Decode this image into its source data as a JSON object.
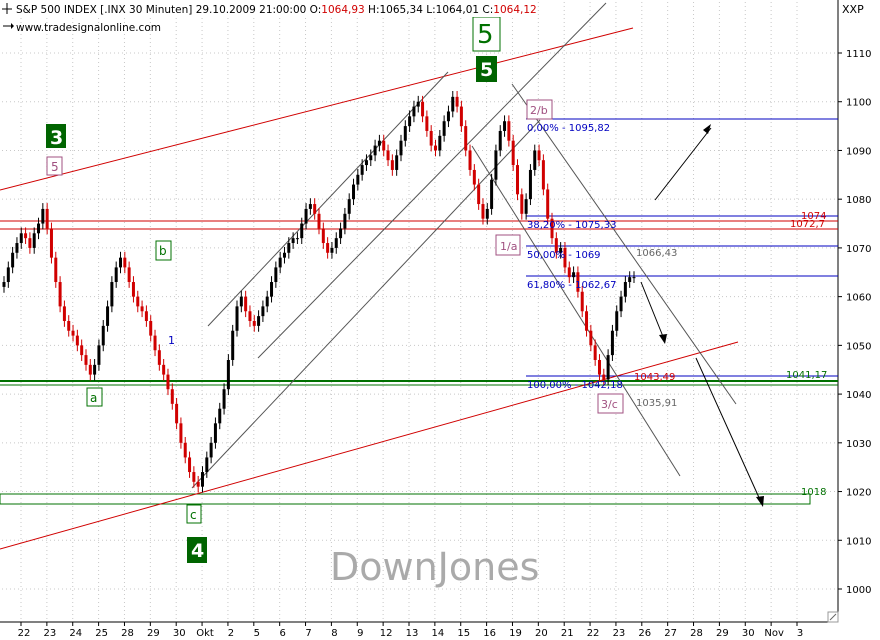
{
  "header": {
    "symbol": "S&P 500 INDEX [.INX  30 Minuten]",
    "timestamp": "29.10.2009 21:00:00",
    "o_label": "O:",
    "o_value": "1064,93",
    "h_text": "H:1065,34",
    "l_text": "L:1064,01",
    "c_label": "C:",
    "c_value": "1064,12",
    "website": "www.tradesignalonline.com",
    "exchange": "XXP"
  },
  "watermark": "DownJones",
  "colors": {
    "up": "#000000",
    "down": "#d00000",
    "green_line": "#007000",
    "red_line": "#d00000",
    "fib_blue": "#0000c0",
    "grid": "#c8c8c8"
  },
  "wave_labels": {
    "w3": "3",
    "w4": "4",
    "w5_outline": "5",
    "w5_solid": "5",
    "w5_small": "5",
    "a": "a",
    "b": "b",
    "c": "c",
    "one_a": "1/a",
    "two_b": "2/b",
    "three_c": "3/c",
    "one_small": "1"
  },
  "fib": {
    "f0": "0,00% - 1095,82",
    "f382": "38,20% - 1075,33",
    "f50": "50,00% - 1069",
    "f618": "61,80% - 1062,67",
    "f100": "100,00% - 1042,18"
  },
  "annotations": {
    "l1074": "1074",
    "l10727": "1072,7",
    "l106643": "1066,43",
    "l104349": "1043,49",
    "l104117": "1041,17",
    "l103591": "1035,91",
    "l1018": "1018"
  },
  "chart_data": {
    "type": "candlestick",
    "title": "S&P 500 INDEX [.INX  30 Minuten]",
    "ylim": [
      995,
      1118
    ],
    "y_ticks": [
      1000,
      1010,
      1020,
      1030,
      1040,
      1050,
      1060,
      1070,
      1080,
      1090,
      1100,
      1110
    ],
    "x_ticks": [
      "22",
      "23",
      "24",
      "25",
      "28",
      "29",
      "30",
      "Okt",
      "2",
      "5",
      "6",
      "7",
      "8",
      "9",
      "12",
      "13",
      "14",
      "15",
      "16",
      "19",
      "20",
      "21",
      "22",
      "23",
      "26",
      "27",
      "28",
      "29",
      "30",
      "Nov",
      "3"
    ],
    "levels": [
      {
        "label": "1074",
        "value": 1074.0
      },
      {
        "label": "1072,7",
        "value": 1072.7
      },
      {
        "label": "1041,17",
        "value": 1041.17
      },
      {
        "label": "1018",
        "value": 1018.0
      },
      {
        "label": "0,00%",
        "value": 1095.82
      },
      {
        "label": "38,20%",
        "value": 1075.33
      },
      {
        "label": "50,00%",
        "value": 1069.0
      },
      {
        "label": "61,80%",
        "value": 1062.67
      },
      {
        "label": "100,00%",
        "value": 1042.18
      }
    ],
    "last_close": 1064.12,
    "closes": [
      1063,
      1066,
      1069,
      1071,
      1073,
      1072,
      1070,
      1073,
      1075,
      1078,
      1074,
      1068,
      1063,
      1058,
      1055,
      1053,
      1052,
      1050,
      1048,
      1046,
      1044,
      1046,
      1050,
      1054,
      1058,
      1063,
      1066,
      1068,
      1066,
      1063,
      1060,
      1058,
      1057,
      1055,
      1052,
      1049,
      1046,
      1044,
      1041,
      1038,
      1034,
      1030,
      1027,
      1024,
      1022,
      1021,
      1024,
      1027,
      1030,
      1034,
      1037,
      1041,
      1047,
      1053,
      1058,
      1060,
      1057,
      1055,
      1054,
      1056,
      1058,
      1060,
      1063,
      1066,
      1068,
      1069,
      1071,
      1072,
      1072,
      1075,
      1078,
      1079,
      1077,
      1074,
      1071,
      1069,
      1070,
      1072,
      1074,
      1077,
      1080,
      1083,
      1085,
      1087,
      1088,
      1089,
      1091,
      1092,
      1090,
      1088,
      1086,
      1089,
      1092,
      1095,
      1097,
      1099,
      1100,
      1097,
      1094,
      1091,
      1090,
      1093,
      1096,
      1098,
      1101,
      1099,
      1095,
      1090,
      1086,
      1083,
      1079,
      1076,
      1078,
      1084,
      1090,
      1094,
      1096,
      1092,
      1087,
      1081,
      1077,
      1080,
      1086,
      1090,
      1088,
      1082,
      1076,
      1072,
      1069,
      1070,
      1066,
      1064,
      1065,
      1061,
      1057,
      1053,
      1050,
      1047,
      1044,
      1043,
      1048,
      1053,
      1057,
      1060,
      1063,
      1064,
      1064
    ]
  }
}
